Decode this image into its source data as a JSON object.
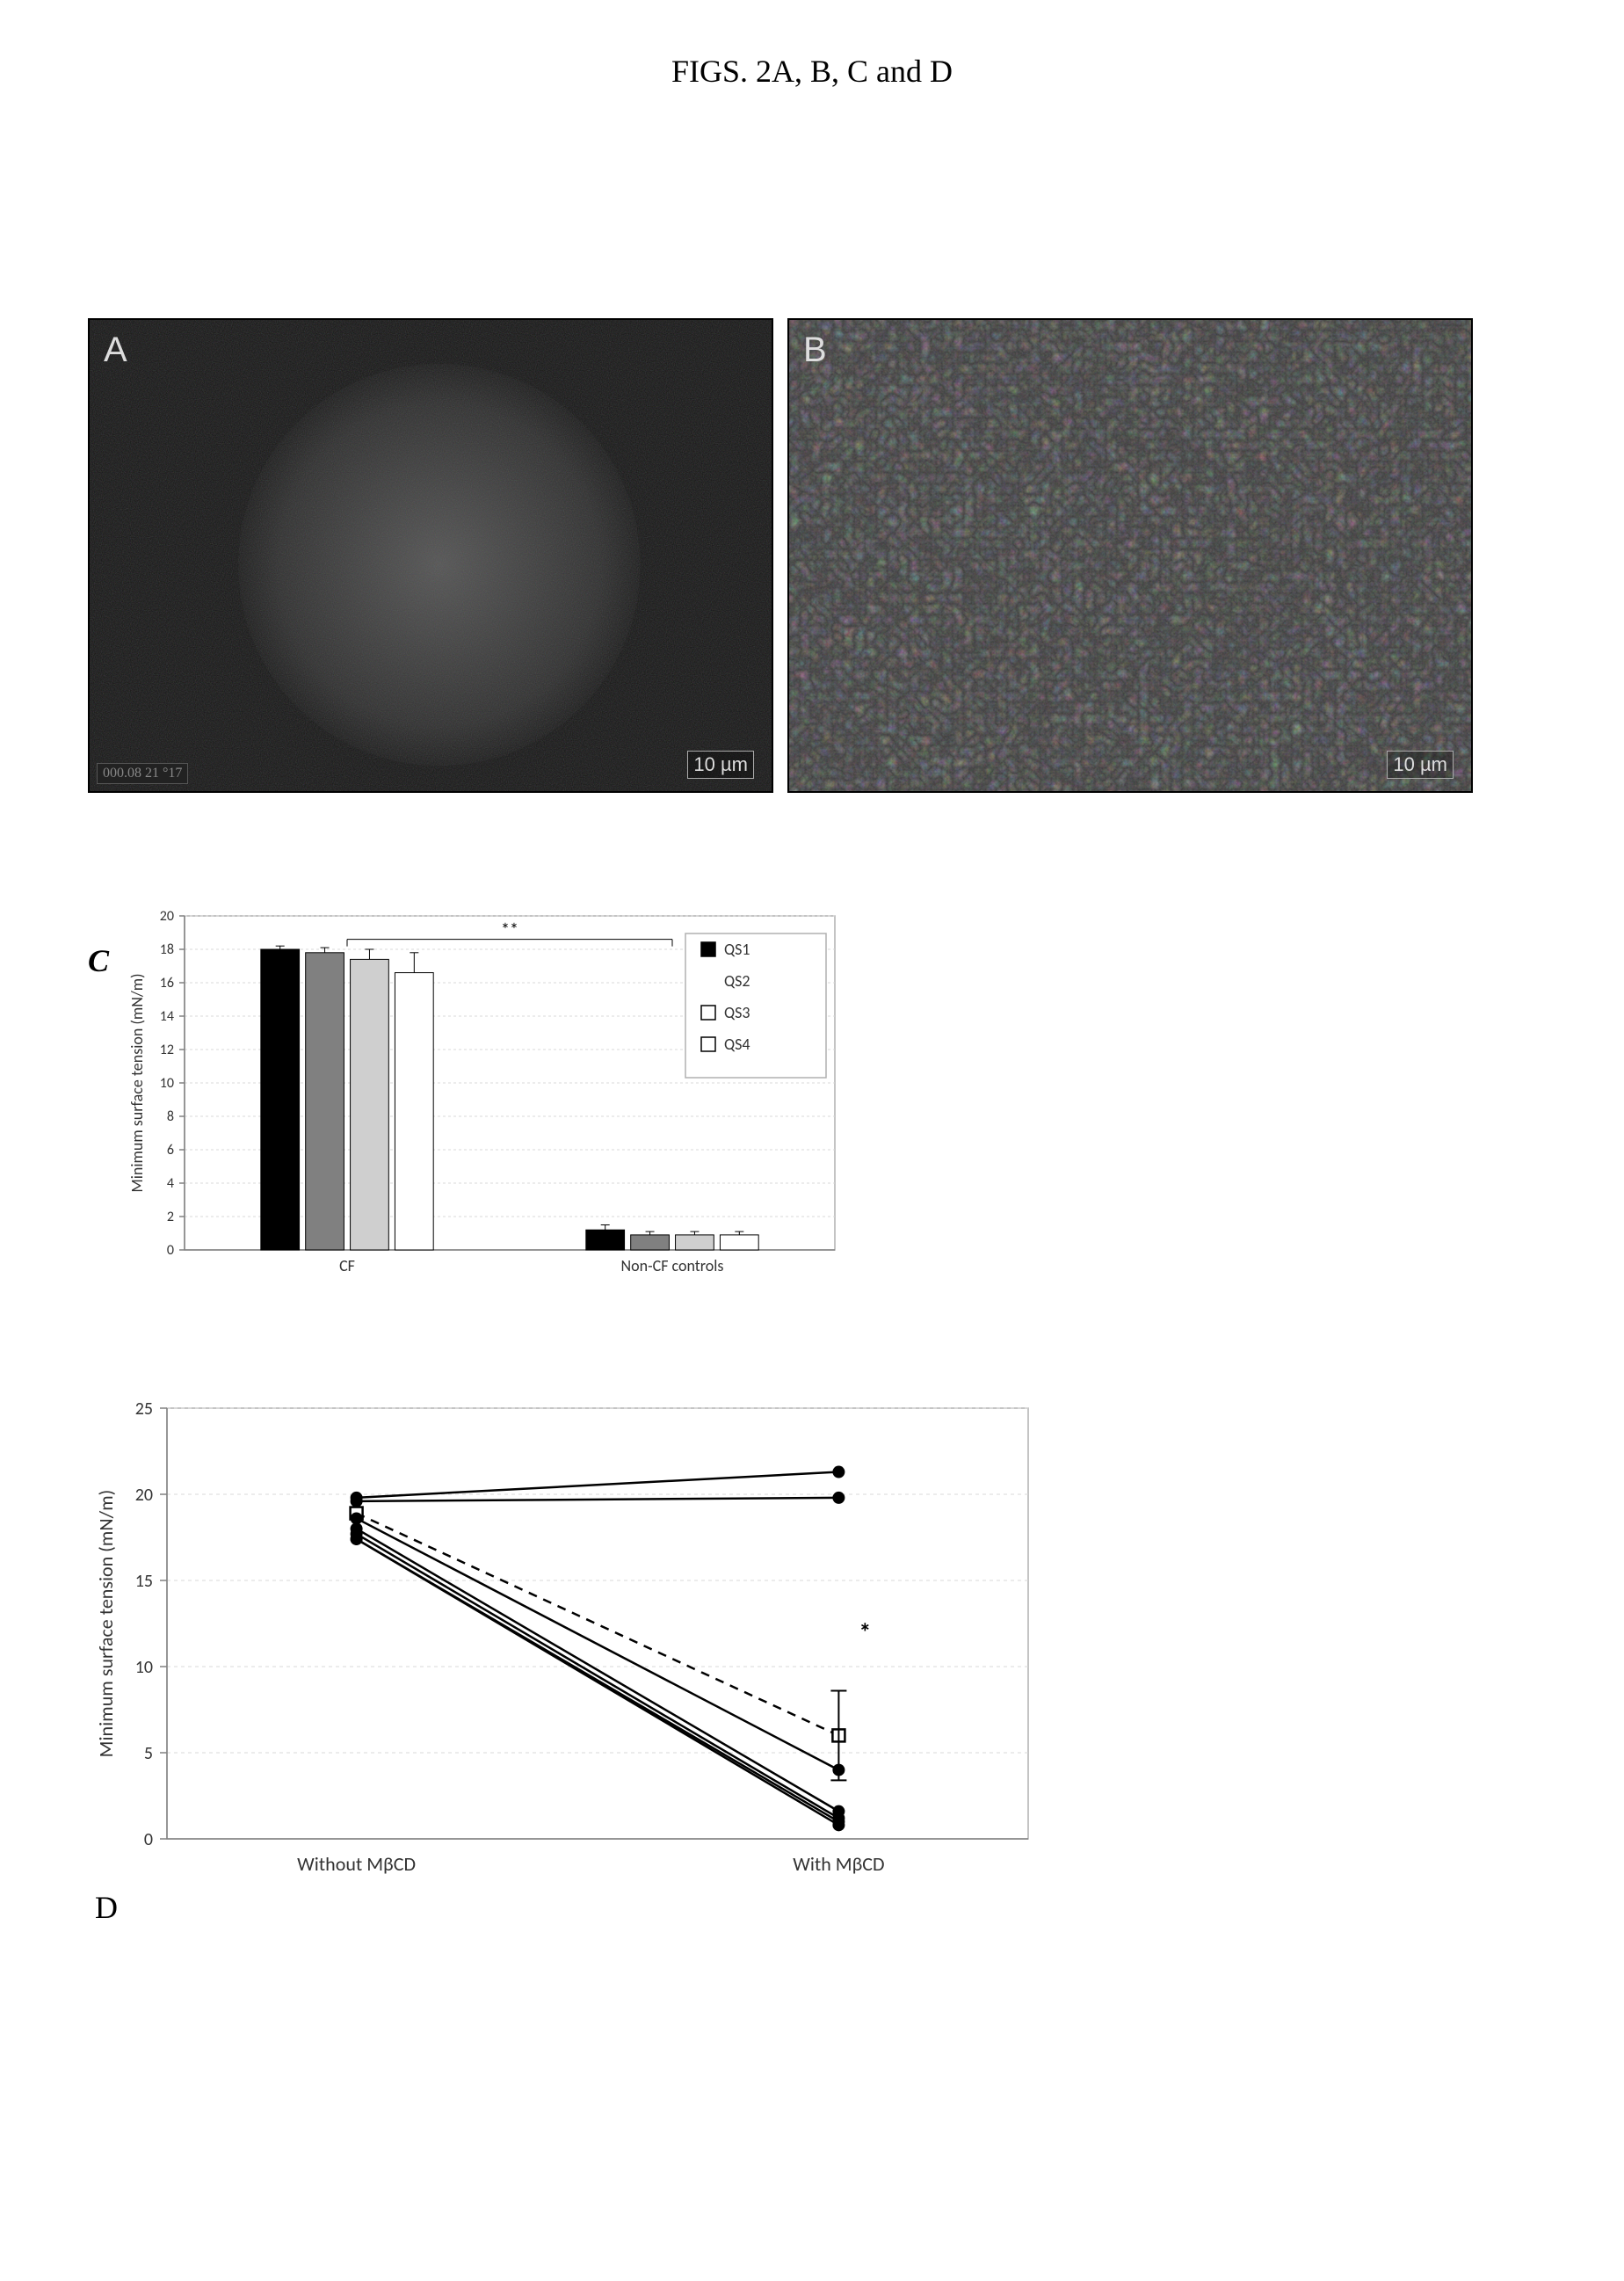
{
  "title": "FIGS. 2A, B, C and D",
  "panels": {
    "A": {
      "letter": "A",
      "scale_label": "10 µm",
      "meta": "000.08 21 °17"
    },
    "B": {
      "letter": "B",
      "scale_label": "10 µm"
    }
  },
  "chart_c": {
    "type": "bar",
    "panel_letter": "C",
    "ylabel": "Minimum surface tension (mN/m)",
    "label_fontsize": 18,
    "tick_fontsize": 16,
    "ylim": [
      0,
      20
    ],
    "ytick_step": 2,
    "categories": [
      "CF",
      "Non-CF controls"
    ],
    "series": [
      {
        "name": "QS1",
        "fill": "#000000",
        "values": [
          18.0,
          1.2
        ],
        "errors": [
          0.2,
          0.3
        ]
      },
      {
        "name": "QS2",
        "fill": "#808080",
        "values": [
          17.8,
          0.9
        ],
        "errors": [
          0.3,
          0.2
        ]
      },
      {
        "name": "QS3",
        "fill": "#cfcfcf",
        "values": [
          17.4,
          0.9
        ],
        "errors": [
          0.6,
          0.2
        ]
      },
      {
        "name": "QS4",
        "fill": "#ffffff",
        "values": [
          16.6,
          0.9
        ],
        "errors": [
          1.2,
          0.2
        ]
      }
    ],
    "bar_width": 0.86,
    "gridline_color": "#d9d9d9",
    "axis_color": "#808080",
    "plot_border_color": "#b0b0b0",
    "background_color": "#ffffff",
    "significance": {
      "label": "**",
      "from_group": 0,
      "to_group": 1,
      "y": 18.6
    },
    "legend": {
      "items": [
        {
          "label": "QS1",
          "swatch_fill": "#000000",
          "swatch_border": "#000000"
        },
        {
          "label": "QS2",
          "swatch_fill": "#ffffff",
          "swatch_border": "#ffffff"
        },
        {
          "label": "QS3",
          "swatch_fill": "#ffffff",
          "swatch_border": "#000000"
        },
        {
          "label": "QS4",
          "swatch_fill": "#ffffff",
          "swatch_border": "#000000"
        }
      ],
      "border_color": "#b0b0b0",
      "fontsize": 18
    }
  },
  "chart_d": {
    "type": "line",
    "panel_letter": "D",
    "ylabel": "Minimum surface tension (mN/m)",
    "label_fontsize": 22,
    "tick_fontsize": 20,
    "ylim": [
      0,
      25
    ],
    "ytick_step": 5,
    "x_categories": [
      "Without MβCD",
      "With MβCD"
    ],
    "gridline_color": "#d9d9d9",
    "axis_color": "#808080",
    "plot_border_color": "#b0b0b0",
    "background_color": "#ffffff",
    "series": [
      {
        "style": "solid",
        "color": "#000000",
        "marker": "circle",
        "values": [
          19.8,
          21.3
        ]
      },
      {
        "style": "solid",
        "color": "#000000",
        "marker": "circle",
        "values": [
          19.6,
          19.8
        ]
      },
      {
        "style": "dashed",
        "color": "#000000",
        "marker": "square",
        "values": [
          18.9,
          6.0
        ],
        "error_right": 2.6
      },
      {
        "style": "solid",
        "color": "#000000",
        "marker": "circle",
        "values": [
          18.6,
          4.0
        ]
      },
      {
        "style": "solid",
        "color": "#000000",
        "marker": "circle",
        "values": [
          18.0,
          1.6
        ]
      },
      {
        "style": "solid",
        "color": "#000000",
        "marker": "circle",
        "values": [
          17.7,
          1.2
        ]
      },
      {
        "style": "solid",
        "color": "#000000",
        "marker": "circle",
        "values": [
          17.4,
          1.0
        ]
      },
      {
        "style": "solid",
        "color": "#000000",
        "marker": "circle",
        "values": [
          17.4,
          0.8
        ]
      }
    ],
    "significance": {
      "label": "*",
      "x_index": 1,
      "y": 11.5,
      "fontsize": 28
    }
  }
}
